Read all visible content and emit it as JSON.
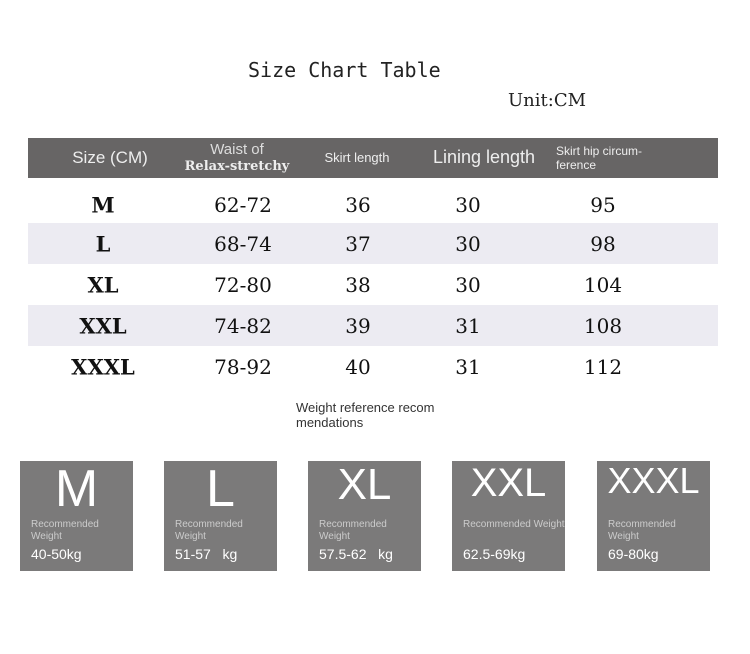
{
  "title": "Size Chart Table",
  "unit": "Unit:CM",
  "headers": [
    "Size (CM)",
    "Waist of",
    "Relax-stretchy",
    "Skirt length",
    "Lining length",
    "Skirt hip circum-",
    "ference"
  ],
  "rows": [
    [
      "M",
      "62-72",
      "36",
      "30",
      "95"
    ],
    [
      "L",
      "68-74",
      "37",
      "30",
      "98"
    ],
    [
      "XL",
      "72-80",
      "38",
      "30",
      "104"
    ],
    [
      "XXL",
      "74-82",
      "39",
      "31",
      "108"
    ],
    [
      "XXXL",
      "78-92",
      "40",
      "31",
      "112"
    ]
  ],
  "note": [
    "Weight reference recom",
    "mendations"
  ],
  "cards": [
    {
      "size": "M",
      "label1": "Recommended",
      "label2": "Weight",
      "weight": "40-50kg"
    },
    {
      "size": "L",
      "label1": "Recommended",
      "label2": "Weight",
      "weight": "51-57   kg"
    },
    {
      "size": "XL",
      "label1": "Recommended",
      "label2": "Weight",
      "weight": "57.5-62   kg"
    },
    {
      "size": "XXL",
      "label1": "Recommended Weight",
      "label2": "",
      "weight": "62.5-69kg"
    },
    {
      "size": "XXXL",
      "label1": "Recommended",
      "label2": "Weight",
      "weight": "69-80kg"
    }
  ]
}
